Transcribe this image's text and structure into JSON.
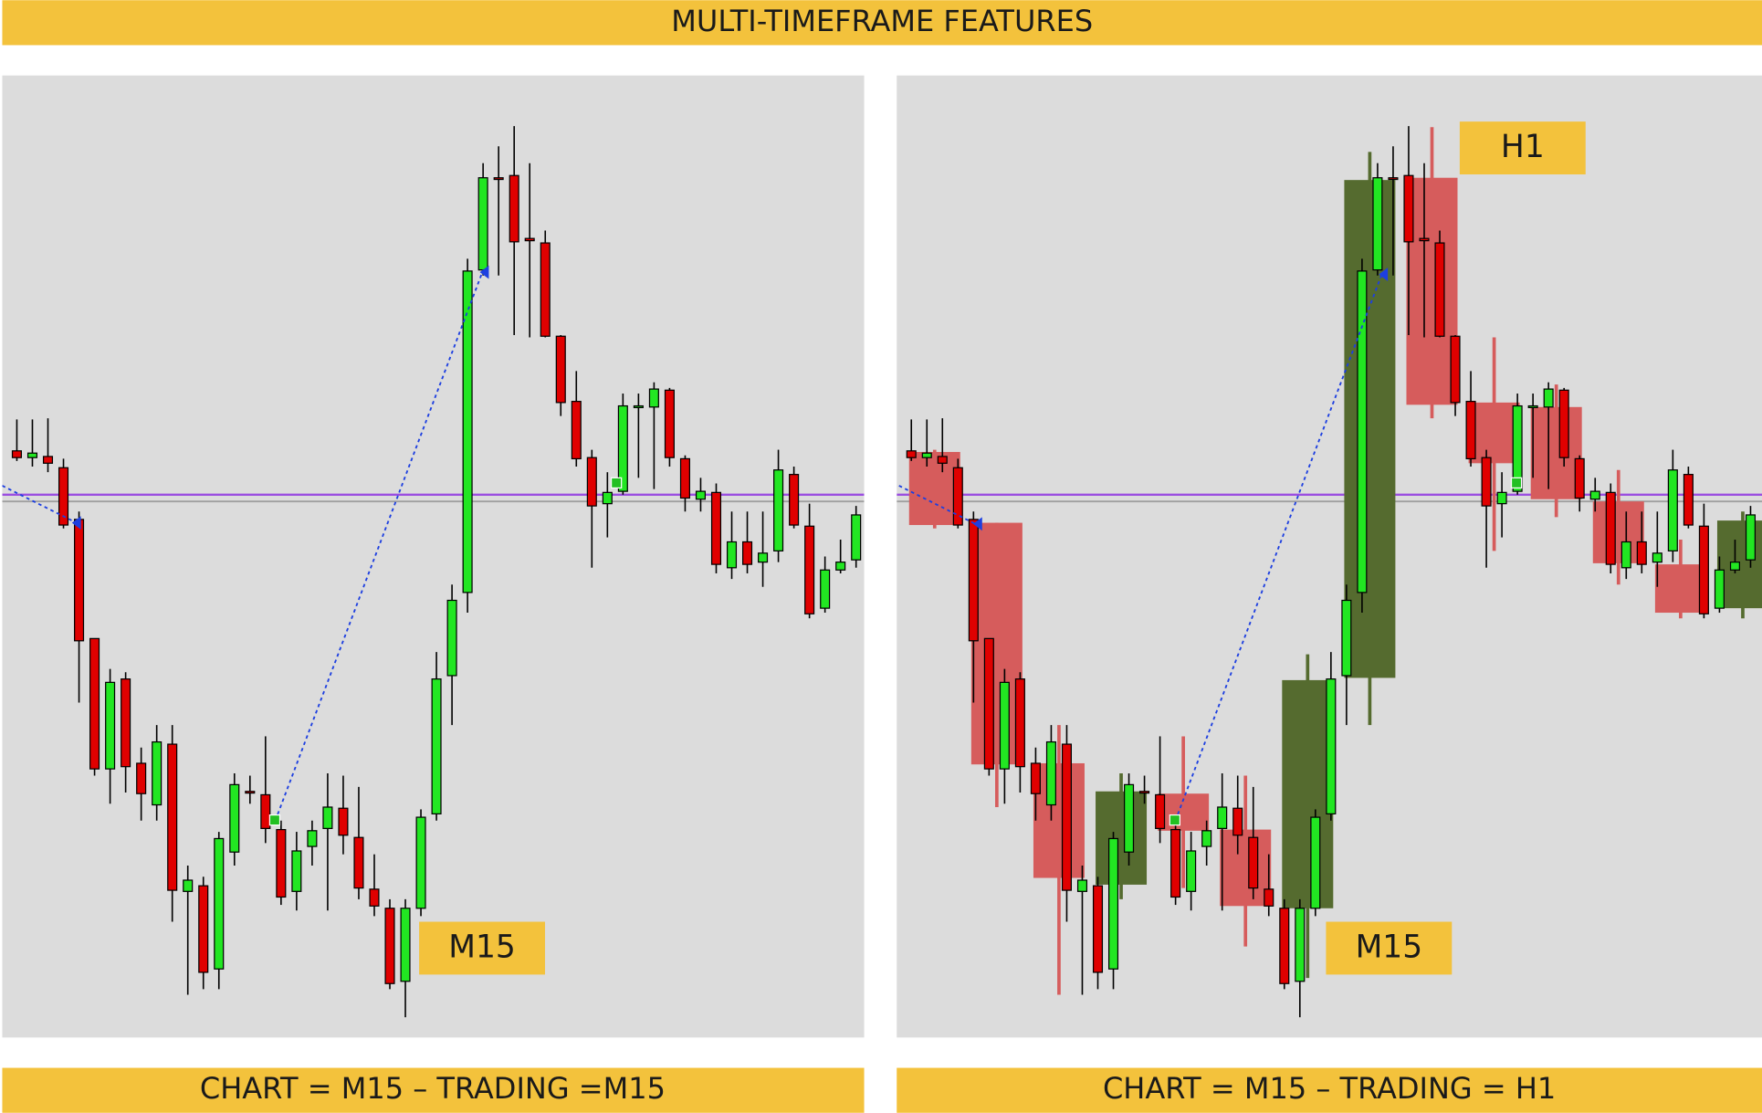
{
  "title": "MULTI-TIMEFRAME FEATURES",
  "chart_data": [
    {
      "type": "candlestick",
      "caption": "CHART = M15 – TRADING =M15",
      "ylim": [
        77,
        933
      ],
      "series": [
        {
          "name": "M15",
          "kind": "candle",
          "up_color": "#22e622",
          "down_color": "#e00000",
          "open": [
            599,
            593,
            594,
            584,
            538,
            432,
            316,
            396,
            321,
            284,
            338,
            207,
            212,
            138,
            242,
            296,
            293,
            262,
            207,
            247,
            263,
            281,
            255,
            209,
            192,
            127,
            192,
            276,
            399,
            473,
            760,
            842,
            844,
            788,
            784,
            701,
            643,
            593,
            552,
            563,
            638,
            638,
            653,
            592,
            556,
            562,
            495,
            518,
            500,
            510,
            578,
            532,
            459,
            493,
            502
          ],
          "high": [
            627,
            627,
            628,
            592,
            545,
            432,
            405,
            402,
            335,
            355,
            355,
            230,
            220,
            260,
            312,
            310,
            345,
            270,
            260,
            270,
            312,
            310,
            300,
            240,
            200,
            200,
            280,
            420,
            480,
            770,
            855,
            870,
            888,
            855,
            795,
            702,
            670,
            600,
            580,
            650,
            650,
            660,
            655,
            595,
            575,
            570,
            545,
            545,
            545,
            600,
            585,
            552,
            505,
            520,
            550
          ],
          "low": [
            590,
            585,
            580,
            530,
            375,
            310,
            285,
            295,
            270,
            270,
            180,
            115,
            120,
            120,
            230,
            285,
            250,
            195,
            190,
            230,
            190,
            240,
            200,
            185,
            120,
            95,
            185,
            270,
            355,
            455,
            755,
            755,
            702,
            700,
            700,
            630,
            585,
            495,
            522,
            560,
            575,
            565,
            585,
            545,
            545,
            490,
            485,
            490,
            478,
            500,
            530,
            450,
            455,
            490,
            495
          ],
          "close": [
            593,
            597,
            588,
            533,
            430,
            316,
            393,
            318,
            294,
            340,
            208,
            217,
            135,
            254,
            302,
            295,
            263,
            202,
            243,
            261,
            282,
            257,
            210,
            194,
            125,
            192,
            273,
            396,
            466,
            759,
            842,
            841,
            785,
            786,
            701,
            642,
            592,
            550,
            562,
            639,
            639,
            654,
            593,
            557,
            563,
            498,
            518,
            498,
            508,
            582,
            533,
            454,
            493,
            500,
            542
          ]
        }
      ]
    },
    {
      "type": "candlestick",
      "caption": "CHART = M15 – TRADING = H1",
      "ylim": [
        77,
        933
      ],
      "series": [
        {
          "name": "H1",
          "kind": "box",
          "up_color": "#556b2f",
          "down_color": "#d65c5c",
          "open": [
            598,
            535,
            321,
            213,
            294,
            262,
            192,
            397,
            842,
            642,
            638,
            554,
            498,
            459
          ],
          "high": [
            600,
            535,
            355,
            312,
            345,
            310,
            418,
            865,
            887,
            700,
            658,
            582,
            520,
            545
          ],
          "low": [
            530,
            282,
            115,
            200,
            210,
            158,
            130,
            355,
            628,
            510,
            540,
            480,
            450,
            450
          ],
          "close": [
            533,
            320,
            219,
            296,
            261,
            194,
            395,
            840,
            640,
            588,
            556,
            499,
            455,
            537
          ]
        },
        {
          "name": "M15",
          "kind": "candle",
          "up_color": "#22e622",
          "down_color": "#e00000",
          "open": [
            599,
            593,
            594,
            584,
            538,
            432,
            316,
            396,
            321,
            284,
            338,
            207,
            212,
            138,
            242,
            296,
            293,
            262,
            207,
            247,
            263,
            281,
            255,
            209,
            192,
            127,
            192,
            276,
            399,
            473,
            760,
            842,
            844,
            788,
            784,
            701,
            643,
            593,
            552,
            563,
            638,
            638,
            653,
            592,
            556,
            562,
            495,
            518,
            500,
            510,
            578,
            532,
            459,
            493,
            502
          ],
          "high": [
            627,
            627,
            628,
            592,
            545,
            432,
            405,
            402,
            335,
            355,
            355,
            230,
            220,
            260,
            312,
            310,
            345,
            270,
            260,
            270,
            312,
            310,
            300,
            240,
            200,
            200,
            280,
            420,
            480,
            770,
            855,
            870,
            888,
            855,
            795,
            702,
            670,
            600,
            580,
            650,
            650,
            660,
            655,
            595,
            575,
            570,
            545,
            545,
            545,
            600,
            585,
            552,
            505,
            520,
            550
          ],
          "low": [
            590,
            585,
            580,
            530,
            375,
            310,
            285,
            295,
            270,
            270,
            180,
            115,
            120,
            120,
            230,
            285,
            250,
            195,
            190,
            230,
            190,
            240,
            200,
            185,
            120,
            95,
            185,
            270,
            355,
            455,
            755,
            755,
            702,
            700,
            700,
            630,
            585,
            495,
            522,
            560,
            575,
            565,
            585,
            545,
            545,
            490,
            485,
            490,
            478,
            500,
            530,
            450,
            455,
            490,
            495
          ],
          "close": [
            593,
            597,
            588,
            533,
            430,
            316,
            393,
            318,
            294,
            340,
            208,
            217,
            135,
            254,
            302,
            295,
            263,
            202,
            243,
            261,
            282,
            257,
            210,
            194,
            125,
            192,
            273,
            396,
            466,
            759,
            842,
            841,
            785,
            786,
            701,
            642,
            592,
            550,
            562,
            639,
            639,
            654,
            593,
            557,
            563,
            498,
            518,
            498,
            508,
            582,
            533,
            454,
            493,
            500,
            542
          ]
        }
      ]
    }
  ]
}
